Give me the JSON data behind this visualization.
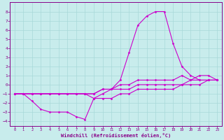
{
  "xlabel": "Windchill (Refroidissement éolien,°C)",
  "ylabel": "",
  "bg_color": "#c8ecec",
  "grid_color": "#a8d8d8",
  "line_color": "#cc00cc",
  "marker": "D",
  "markersize": 1.5,
  "linewidth": 0.8,
  "xlim": [
    -0.5,
    23.5
  ],
  "ylim": [
    -4.5,
    9.0
  ],
  "xticks": [
    0,
    1,
    2,
    3,
    4,
    5,
    6,
    7,
    8,
    9,
    10,
    11,
    12,
    13,
    14,
    15,
    16,
    17,
    18,
    19,
    20,
    21,
    22,
    23
  ],
  "yticks": [
    -4,
    -3,
    -2,
    -1,
    0,
    1,
    2,
    3,
    4,
    5,
    6,
    7,
    8
  ],
  "line1_x": [
    0,
    1,
    2,
    3,
    4,
    5,
    6,
    7,
    8,
    9,
    10,
    11,
    12,
    13,
    14,
    15,
    16,
    17,
    18,
    19,
    20,
    21,
    22,
    23
  ],
  "line1_y": [
    -1,
    -1,
    -1,
    -1,
    -1,
    -1,
    -1,
    -1,
    -1,
    -1,
    -0.5,
    -0.5,
    -0.5,
    -0.5,
    0,
    0,
    0,
    0,
    0,
    0,
    0.5,
    0.5,
    0.5,
    0.5
  ],
  "line2_x": [
    0,
    1,
    2,
    3,
    4,
    5,
    6,
    7,
    8,
    9,
    10,
    11,
    12,
    13,
    14,
    15,
    16,
    17,
    18,
    19,
    20,
    21,
    22,
    23
  ],
  "line2_y": [
    -1,
    -1,
    -1.8,
    -2.7,
    -3,
    -3,
    -3,
    -3.5,
    -3.8,
    -1.5,
    -1.5,
    -1.5,
    -1,
    -1,
    -0.5,
    -0.5,
    -0.5,
    -0.5,
    -0.5,
    0,
    0,
    0,
    0.5,
    0.5
  ],
  "line3_x": [
    0,
    1,
    2,
    3,
    4,
    5,
    6,
    7,
    8,
    9,
    10,
    11,
    12,
    13,
    14,
    15,
    16,
    17,
    18,
    19,
    20,
    21,
    22,
    23
  ],
  "line3_y": [
    -1,
    -1,
    -1,
    -1,
    -1,
    -1,
    -1,
    -1,
    -1,
    -1.5,
    -1,
    -0.5,
    0.5,
    3.5,
    6.5,
    7.5,
    8,
    8,
    4.5,
    2,
    1,
    0.5,
    0.5,
    0.5
  ],
  "line4_x": [
    0,
    1,
    2,
    3,
    4,
    5,
    6,
    7,
    8,
    9,
    10,
    11,
    12,
    13,
    14,
    15,
    16,
    17,
    18,
    19,
    20,
    21,
    22,
    23
  ],
  "line4_y": [
    -1,
    -1,
    -1,
    -1,
    -1,
    -1,
    -1,
    -1,
    -1,
    -1,
    -0.5,
    -0.5,
    0,
    0,
    0.5,
    0.5,
    0.5,
    0.5,
    0.5,
    1,
    0.5,
    1,
    1,
    0.5
  ]
}
